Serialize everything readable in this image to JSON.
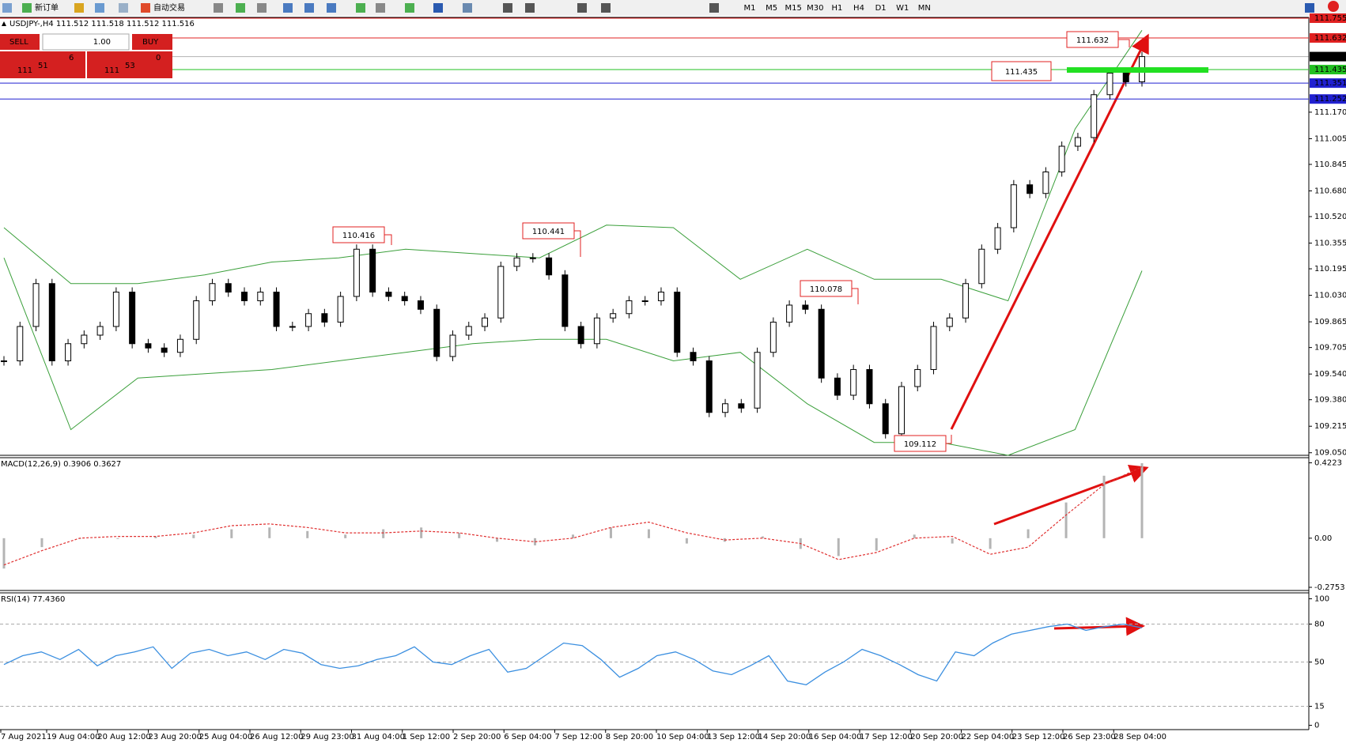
{
  "toolbar": {
    "new_order": "新订单",
    "auto_trading": "自动交易",
    "timeframes": [
      "M1",
      "M5",
      "M15",
      "M30",
      "H1",
      "H4",
      "D1",
      "W1",
      "MN"
    ]
  },
  "trade_panel": {
    "sell": "SELL",
    "lots": "1.00",
    "buy": "BUY",
    "sell_price": {
      "big": "111",
      "main": "51",
      "small": "6"
    },
    "buy_price": {
      "big": "111",
      "main": "53",
      "small": "0"
    }
  },
  "time_axis": [
    "7 Aug 2021",
    "19 Aug 04:00",
    "20 Aug 12:00",
    "23 Aug 20:00",
    "25 Aug 04:00",
    "26 Aug 12:00",
    "29 Aug 23:00",
    "31 Aug 04:00",
    "1 Sep 12:00",
    "2 Sep 20:00",
    "6 Sep 04:00",
    "7 Sep 12:00",
    "8 Sep 20:00",
    "10 Sep 04:00",
    "13 Sep 12:00",
    "14 Sep 20:00",
    "16 Sep 04:00",
    "17 Sep 12:00",
    "20 Sep 20:00",
    "22 Sep 04:00",
    "23 Sep 12:00",
    "26 Sep 23:00",
    "28 Sep 04:00"
  ],
  "chart_data": [
    {
      "type": "candlestick",
      "title": "USDJPY-,H4  111.512 111.518 111.512 111.516",
      "values": [
        109.622,
        109.836,
        110.103,
        109.622,
        109.729,
        109.782,
        109.836,
        110.05,
        109.729,
        109.702,
        109.675,
        109.756,
        109.996,
        110.103,
        110.05,
        109.996,
        110.05,
        109.836,
        109.836,
        109.916,
        109.863,
        110.023,
        110.317,
        110.05,
        110.023,
        109.996,
        109.943,
        109.649,
        109.782,
        109.836,
        109.889,
        110.21,
        110.263,
        110.263,
        110.157,
        109.836,
        109.729,
        109.889,
        109.916,
        109.996,
        109.996,
        110.05,
        109.675,
        109.622,
        109.301,
        109.355,
        109.328,
        109.675,
        109.863,
        109.969,
        109.943,
        109.515,
        109.408,
        109.568,
        109.355,
        109.168,
        109.462,
        109.568,
        109.836,
        109.889,
        110.103,
        110.317,
        110.451,
        110.718,
        110.664,
        110.798,
        110.958,
        111.012,
        111.279,
        111.413,
        111.359,
        111.516
      ],
      "bands": [
        {
          "values": [
            110.451,
            110.103,
            110.103,
            110.157,
            110.237,
            110.263,
            110.317,
            110.29,
            110.263,
            110.467,
            110.451,
            110.13,
            110.317,
            110.13,
            110.13,
            109.996,
            111.065,
            111.68
          ],
          "color": "#3a9f3a"
        },
        {
          "values": [
            110.263,
            109.194,
            109.515,
            109.542,
            109.568,
            109.622,
            109.675,
            109.729,
            109.756,
            109.756,
            109.622,
            109.675,
            109.355,
            109.114,
            109.114,
            109.034,
            109.194,
            110.183
          ],
          "color": "#3a9f3a"
        }
      ],
      "ylim": [
        109.034,
        111.76
      ],
      "yticks": [
        {
          "value": 111.17,
          "label": "111.170"
        },
        {
          "value": 111.005,
          "label": "111.005"
        },
        {
          "value": 110.845,
          "label": "110.845"
        },
        {
          "value": 110.68,
          "label": "110.680"
        },
        {
          "value": 110.52,
          "label": "110.520"
        },
        {
          "value": 110.355,
          "label": "110.355"
        },
        {
          "value": 110.195,
          "label": "110.195"
        },
        {
          "value": 110.03,
          "label": "110.030"
        },
        {
          "value": 109.865,
          "label": "109.865"
        },
        {
          "value": 109.705,
          "label": "109.705"
        },
        {
          "value": 109.54,
          "label": "109.540"
        },
        {
          "value": 109.38,
          "label": "109.380"
        },
        {
          "value": 109.215,
          "label": "109.215"
        },
        {
          "value": 109.05,
          "label": "109.050"
        }
      ],
      "price_labels": [
        {
          "value": 111.755,
          "label": "111.755",
          "color": "#e02020"
        },
        {
          "value": 111.632,
          "label": "111.632",
          "color": "#e02020"
        },
        {
          "value": 111.516,
          "label": "111.516",
          "color": "#000000"
        },
        {
          "value": 111.435,
          "label": "111.435",
          "color": "#22c022"
        },
        {
          "value": 111.351,
          "label": "111.351",
          "color": "#2020d0"
        },
        {
          "value": 111.252,
          "label": "111.252",
          "color": "#2020d0"
        }
      ],
      "annotations": [
        "110.416",
        "110.441",
        "110.078",
        "109.112",
        "111.632",
        "111.435"
      ]
    },
    {
      "type": "macd",
      "title": "MACD(12,26,9) 0.3906 0.3627",
      "values": [
        -0.17,
        -0.05,
        0.0,
        0.0,
        0.01,
        0.02,
        0.05,
        0.06,
        0.04,
        0.02,
        0.05,
        0.06,
        0.03,
        -0.02,
        -0.04,
        0.02,
        0.06,
        0.05,
        -0.03,
        -0.02,
        0.01,
        -0.06,
        -0.1,
        -0.07,
        0.02,
        -0.03,
        -0.06,
        0.05,
        0.2,
        0.35,
        0.42
      ],
      "signal": [
        -0.15,
        -0.07,
        0.0,
        0.01,
        0.01,
        0.03,
        0.07,
        0.08,
        0.06,
        0.03,
        0.03,
        0.04,
        0.03,
        0.0,
        -0.02,
        0.0,
        0.06,
        0.09,
        0.03,
        -0.01,
        0.0,
        -0.03,
        -0.12,
        -0.08,
        0.0,
        0.01,
        -0.09,
        -0.05,
        0.13,
        0.3,
        0.4
      ],
      "color": "#b4b4b4",
      "signal_color": "#e03030",
      "ylim": [
        -0.293,
        0.451
      ],
      "yticks": [
        0.4223,
        {
          "value": 0,
          "label": "0.00"
        },
        -0.2753
      ]
    },
    {
      "type": "line",
      "title": "RSI(14) 77.4360",
      "values": [
        48,
        55,
        58,
        52,
        60,
        47,
        55,
        58,
        62,
        45,
        57,
        60,
        55,
        58,
        52,
        60,
        57,
        48,
        45,
        47,
        52,
        55,
        62,
        50,
        48,
        55,
        60,
        42,
        45,
        55,
        65,
        63,
        52,
        38,
        45,
        55,
        58,
        52,
        43,
        40,
        47,
        55,
        35,
        32,
        42,
        50,
        60,
        55,
        48,
        40,
        35,
        58,
        55,
        65,
        72,
        75,
        78,
        80,
        75,
        78,
        80,
        77
      ],
      "color": "#3b8fe0",
      "ylim": [
        -3.4,
        104.7
      ],
      "yticks": [
        100,
        80,
        50,
        15,
        0
      ],
      "grid_levels": [
        80,
        50,
        15
      ]
    }
  ]
}
